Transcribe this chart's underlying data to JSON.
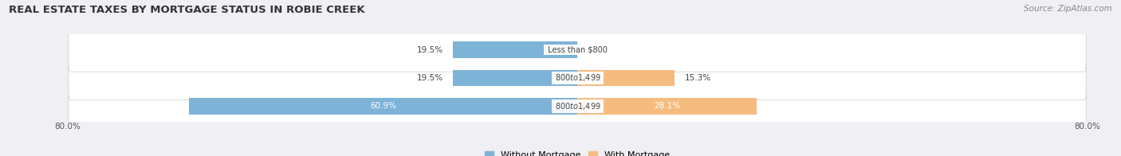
{
  "title": "REAL ESTATE TAXES BY MORTGAGE STATUS IN ROBIE CREEK",
  "source": "Source: ZipAtlas.com",
  "bars": [
    {
      "row": 2,
      "label": "Less than $800",
      "without_mortgage": 19.5,
      "with_mortgage": 0.0
    },
    {
      "row": 1,
      "label": "$800 to $1,499",
      "without_mortgage": 19.5,
      "with_mortgage": 15.3
    },
    {
      "row": 0,
      "label": "$800 to $1,499",
      "without_mortgage": 60.9,
      "with_mortgage": 28.1
    }
  ],
  "xlim": [
    -80.0,
    80.0
  ],
  "bar_height": 0.58,
  "color_without": "#7eb3d8",
  "color_with": "#f5bc80",
  "bg_row_color": "#e8e8ec",
  "bg_row_light": "#f0f0f4",
  "title_fontsize": 9.5,
  "source_fontsize": 7.5,
  "bar_fontsize": 7.5,
  "legend_fontsize": 8,
  "tick_fontsize": 7.5,
  "title_color": "#333333",
  "source_color": "#888888",
  "label_outside_color": "#444444",
  "label_inside_color": "#ffffff",
  "center_label_color": "#444444"
}
